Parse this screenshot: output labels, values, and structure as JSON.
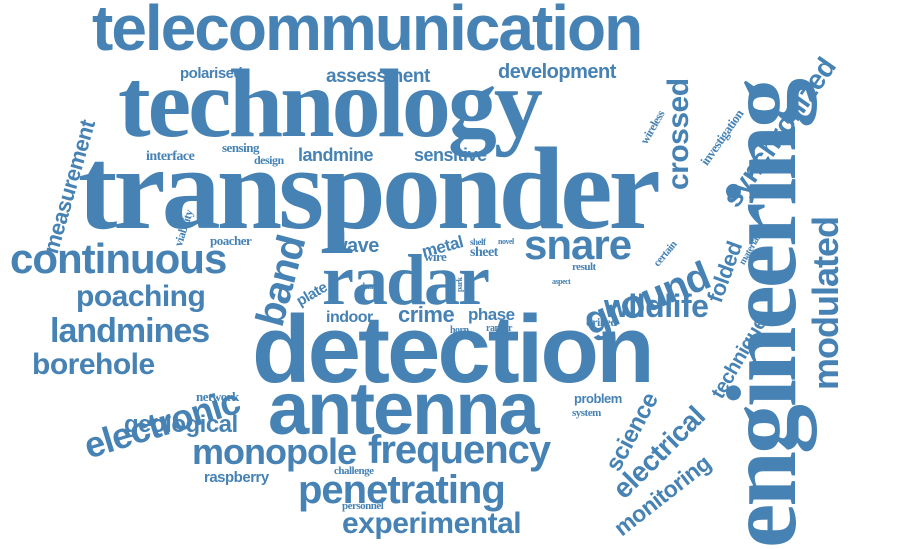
{
  "cloud": {
    "color": "#4682b4",
    "words": {
      "telecommunication": "telecommunication",
      "technology": "technology",
      "transponder": "transponder",
      "engineering": "engineering",
      "detection": "detection",
      "antenna": "antenna",
      "radar": "radar",
      "continuous": "continuous",
      "snare": "snare",
      "frequency": "frequency",
      "monopole": "monopole",
      "penetrating": "penetrating",
      "experimental": "experimental",
      "landmines": "landmines",
      "poaching": "poaching",
      "borehole": "borehole",
      "electronic": "electronic",
      "geological": "geological",
      "ground": "ground",
      "wildlife": "wildlife",
      "modulated": "modulated",
      "synchronized": "synchronized",
      "crossed": "crossed",
      "development": "development",
      "assessment": "assessment",
      "polarised": "polarised",
      "measurement": "measurement",
      "band": "band",
      "landmine": "landmine",
      "sensitive": "sensitive",
      "interface": "interface",
      "sensing": "sensing",
      "design": "design",
      "wave": "wave",
      "metal": "metal",
      "poacher": "poacher",
      "viability": "viability",
      "wire": "wire",
      "sheet": "sheet",
      "shelf": "shelf",
      "novel": "novel",
      "plate": "plate",
      "dual": "dual",
      "card": "card",
      "park": "park",
      "phase": "phase",
      "crime": "crime",
      "indoor": "indoor",
      "horn": "horn",
      "ranger": "ranger",
      "network": "network",
      "problem": "problem",
      "system": "system",
      "science": "science",
      "electrical": "electrical",
      "monitoring": "monitoring",
      "technique": "technique",
      "folded": "folded",
      "drilled": "drilled",
      "result": "result",
      "aspect": "aspect",
      "certain": "certain",
      "material": "material",
      "investigation": "investigation",
      "wireless": "wireless",
      "raspberry": "raspberry",
      "challenge": "challenge",
      "personnel": "personnel"
    }
  }
}
